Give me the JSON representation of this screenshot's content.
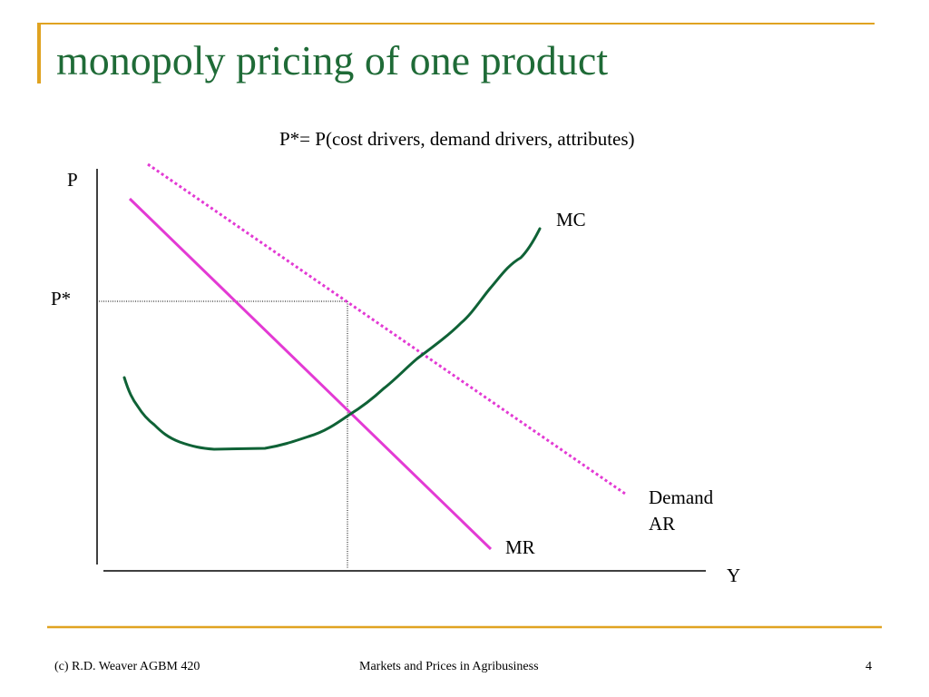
{
  "slide": {
    "title": "monopoly pricing of one product",
    "formula": "P*= P(cost drivers, demand drivers, attributes)",
    "footer_left": "(c) R.D. Weaver  AGBM 420",
    "footer_center": "Markets and Prices in Agribusiness",
    "page_number": "4"
  },
  "diagram": {
    "y_axis_label": "P",
    "x_axis_label": "Y",
    "price_marker_label": "P*",
    "curves": {
      "mc": "MC",
      "mr": "MR",
      "demand": "Demand",
      "ar": "AR"
    }
  },
  "colors": {
    "title": "#1f6b37",
    "accent_rule": "#e0a321",
    "mc_curve": "#0f6236",
    "mr_curve": "#e33ad4",
    "demand_curve": "#e33ad4",
    "axes": "#000000"
  }
}
